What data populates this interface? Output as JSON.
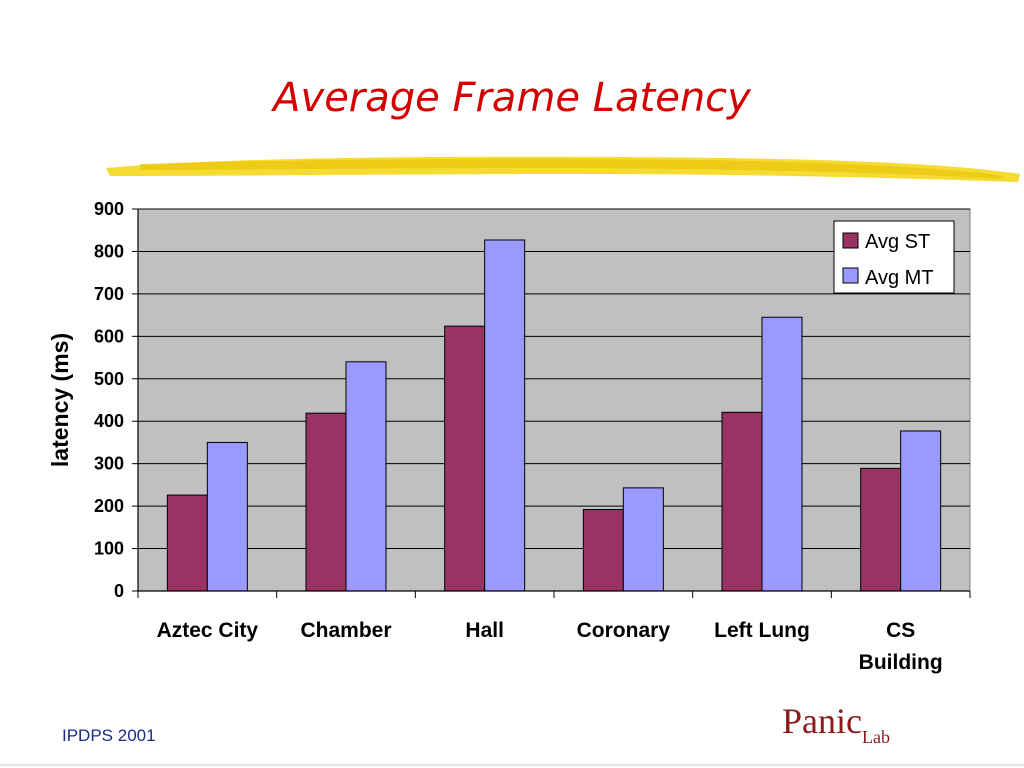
{
  "slide": {
    "title": "Average Frame Latency",
    "footer": "IPDPS 2001",
    "logo_main": "Panic",
    "logo_sub": "Lab"
  },
  "colors": {
    "title": "#d40000",
    "plot_bg": "#c0c0c0",
    "series_st": "#993366",
    "series_mt": "#9999ff",
    "brush": "#f5d81c"
  },
  "chart_data": {
    "type": "bar",
    "title": "",
    "xlabel": "",
    "ylabel": "latency (ms)",
    "ylim": [
      0,
      900
    ],
    "yticks": [
      0,
      100,
      200,
      300,
      400,
      500,
      600,
      700,
      800,
      900
    ],
    "grid": true,
    "legend_position": "top-right",
    "categories": [
      [
        "Aztec City"
      ],
      [
        "Chamber"
      ],
      [
        "Hall"
      ],
      [
        "Coronary"
      ],
      [
        "Left Lung"
      ],
      [
        "CS",
        "Building"
      ]
    ],
    "series": [
      {
        "name": "Avg ST",
        "color": "#993366",
        "values": [
          226,
          419,
          624,
          192,
          421,
          289
        ]
      },
      {
        "name": "Avg MT",
        "color": "#9999ff",
        "values": [
          350,
          540,
          827,
          243,
          645,
          377
        ]
      }
    ]
  }
}
